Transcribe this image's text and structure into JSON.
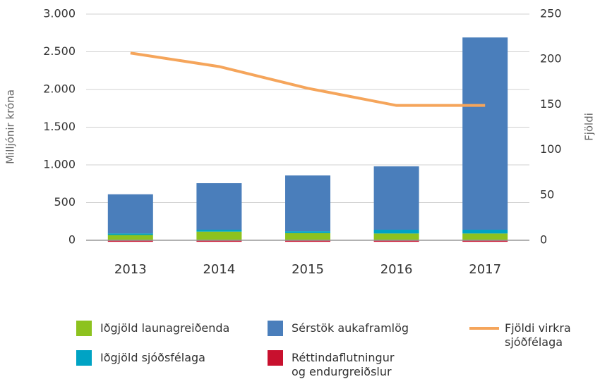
{
  "chart_data": {
    "type": "bar",
    "categories": [
      "2013",
      "2014",
      "2015",
      "2016",
      "2017"
    ],
    "series": [
      {
        "name": "Iðgjöld launagreiðenda",
        "color": "#8dc21f",
        "values": [
          70,
          115,
          95,
          90,
          90
        ]
      },
      {
        "name": "Iðgjöld sjóðsfélaga",
        "color": "#00a3c4",
        "values": [
          20,
          25,
          25,
          50,
          50
        ]
      },
      {
        "name": "Sérstök aukaframlög",
        "color": "#4a7ebb",
        "values": [
          520,
          617,
          740,
          840,
          2550
        ]
      },
      {
        "name": "Réttindaflutningur og endurgreiðslur",
        "color": "#c8102e",
        "values": [
          -20,
          -20,
          -20,
          -20,
          -20
        ]
      },
      {
        "name": "Fjöldi virkra sjóðfélaga",
        "color": "#f5a55b",
        "type": "line",
        "axis": "y2",
        "values": [
          207,
          192,
          168,
          149,
          149
        ]
      }
    ],
    "ylabel": "Milljónir króna",
    "y2label": "Fjöldi",
    "ylim": [
      0,
      3000
    ],
    "yticks": [
      0,
      500,
      {
        "value": 1000,
        "label": "1.000"
      },
      {
        "value": 1500,
        "label": "1.500"
      },
      {
        "value": 2000,
        "label": "2.000"
      },
      {
        "value": 2500,
        "label": "2.500"
      },
      {
        "value": 3000,
        "label": "3.000"
      }
    ],
    "y2lim": [
      0,
      250
    ],
    "y2ticks": [
      0,
      50,
      100,
      150,
      200,
      250
    ],
    "grid": true
  }
}
